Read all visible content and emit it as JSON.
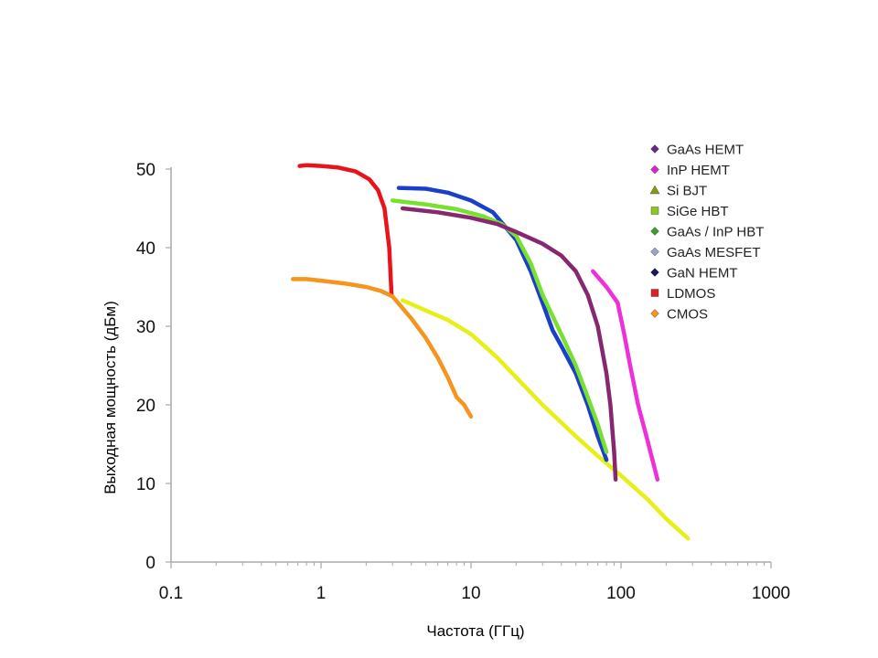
{
  "chart_data": {
    "type": "line",
    "xlabel": "Частота (ГГц)",
    "ylabel": "Выходная мощность (дБм)",
    "x_scale": "log",
    "xlim": [
      0.1,
      1000
    ],
    "ylim": [
      0,
      50
    ],
    "x_ticks": [
      0.1,
      1,
      10,
      100,
      1000
    ],
    "x_tick_labels": [
      "0.1",
      "1",
      "10",
      "100",
      "1000"
    ],
    "y_ticks": [
      0,
      10,
      20,
      30,
      40,
      50
    ],
    "y_tick_labels": [
      "0",
      "10",
      "20",
      "30",
      "40",
      "50"
    ],
    "grid": false,
    "legend_position": "top-right",
    "legend": [
      {
        "name": "GaAs HEMT",
        "color": "#6a2a8a",
        "marker": "diamond"
      },
      {
        "name": "InP HEMT",
        "color": "#e020d0",
        "marker": "diamond"
      },
      {
        "name": "Si BJT",
        "color": "#8a9a10",
        "marker": "triangle"
      },
      {
        "name": "SiGe HBT",
        "color": "#8cc820",
        "marker": "square"
      },
      {
        "name": "GaAs / InP HBT",
        "color": "#3aa02a",
        "marker": "diamond"
      },
      {
        "name": "GaAs MESFET",
        "color": "#9aa0d0",
        "marker": "diamond"
      },
      {
        "name": "GaN HEMT",
        "color": "#1a1a60",
        "marker": "diamond"
      },
      {
        "name": "LDMOS",
        "color": "#e02020",
        "marker": "square"
      },
      {
        "name": "CMOS",
        "color": "#f5951f",
        "marker": "diamond"
      }
    ],
    "curves": [
      {
        "color": "#e8141c",
        "x": [
          0.72,
          0.8,
          1.0,
          1.3,
          1.7,
          2.1,
          2.4,
          2.65,
          2.85,
          2.95
        ],
        "y": [
          50.4,
          50.5,
          50.4,
          50.2,
          49.7,
          48.7,
          47.3,
          45.0,
          40.0,
          34.0
        ]
      },
      {
        "color": "#f5951f",
        "x": [
          0.65,
          0.8,
          1.0,
          1.5,
          2.0,
          2.5,
          3.0,
          4.0,
          5.0,
          6.0,
          7.0,
          8.0,
          9.0,
          10.0
        ],
        "y": [
          36.0,
          36.0,
          35.8,
          35.4,
          35.0,
          34.5,
          33.8,
          31.0,
          28.5,
          26.0,
          23.5,
          21.0,
          20.0,
          18.5
        ]
      },
      {
        "color": "#e6f018",
        "x": [
          3.5,
          5.0,
          7.0,
          10.0,
          15.0,
          20.0,
          30.0,
          50.0,
          70.0,
          100.0,
          150.0,
          200.0,
          280.0
        ],
        "y": [
          33.3,
          32.0,
          30.8,
          29.0,
          26.0,
          23.5,
          20.0,
          16.0,
          13.5,
          11.0,
          8.0,
          5.5,
          3.0
        ]
      },
      {
        "color": "#1a3fc8",
        "x": [
          3.3,
          5.0,
          7.0,
          10.0,
          14.0,
          16.0,
          20.0,
          25.0,
          30.0,
          35.0,
          40.0,
          50.0,
          60.0,
          70.0,
          80.0
        ],
        "y": [
          47.6,
          47.5,
          47.0,
          46.0,
          44.5,
          43.2,
          41.0,
          37.0,
          33.0,
          29.5,
          27.5,
          24.0,
          20.0,
          16.0,
          13.0
        ]
      },
      {
        "color": "#78e030",
        "x": [
          3.0,
          5.0,
          8.0,
          12.0,
          16.0,
          20.0,
          25.0,
          30.0,
          40.0,
          50.0,
          60.0,
          70.0,
          80.0
        ],
        "y": [
          46.0,
          45.5,
          44.9,
          44.0,
          43.0,
          41.5,
          38.0,
          34.0,
          29.0,
          25.0,
          21.0,
          17.5,
          14.0
        ]
      },
      {
        "color": "#862870",
        "x": [
          3.5,
          6.0,
          10.0,
          15.0,
          20.0,
          30.0,
          40.0,
          50.0,
          60.0,
          70.0,
          80.0,
          85.0,
          90.0,
          92.0
        ],
        "y": [
          45.0,
          44.5,
          43.8,
          43.0,
          42.0,
          40.5,
          39.0,
          37.0,
          34.0,
          30.0,
          24.0,
          20.0,
          14.0,
          10.5
        ]
      },
      {
        "color": "#ee30d8",
        "x": [
          65.0,
          80.0,
          95.0,
          105.0,
          115.0,
          130.0,
          150.0,
          175.0
        ],
        "y": [
          37.0,
          35.0,
          33.0,
          29.0,
          25.0,
          20.0,
          15.5,
          10.5
        ]
      }
    ]
  }
}
